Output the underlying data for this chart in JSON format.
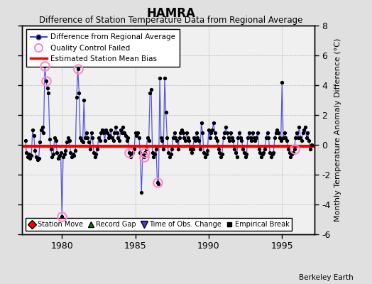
{
  "title": "HAMRA",
  "subtitle": "Difference of Station Temperature Data from Regional Average",
  "ylabel": "Monthly Temperature Anomaly Difference (°C)",
  "xlabel_ticks": [
    1980,
    1985,
    1990,
    1995
  ],
  "ylim": [
    -6,
    8
  ],
  "yticks": [
    -6,
    -4,
    -2,
    0,
    2,
    4,
    6,
    8
  ],
  "xlim": [
    1977.3,
    1997.2
  ],
  "bias_value": -0.1,
  "background_color": "#e0e0e0",
  "plot_bg_color": "#f0f0f0",
  "line_color": "#4444dd",
  "bias_color": "#ff0000",
  "marker_color": "#000000",
  "qc_color": "#ff88cc",
  "watermark": "Berkeley Earth",
  "times": [
    1977.5,
    1977.583,
    1977.667,
    1977.75,
    1977.833,
    1977.917,
    1978.0,
    1978.083,
    1978.167,
    1978.25,
    1978.333,
    1978.417,
    1978.5,
    1978.583,
    1978.667,
    1978.75,
    1978.833,
    1978.917,
    1979.0,
    1979.083,
    1979.167,
    1979.25,
    1979.333,
    1979.417,
    1979.5,
    1979.583,
    1979.667,
    1979.75,
    1979.833,
    1979.917,
    1980.0,
    1980.083,
    1980.167,
    1980.25,
    1980.333,
    1980.417,
    1980.5,
    1980.583,
    1980.667,
    1980.75,
    1980.833,
    1980.917,
    1981.0,
    1981.083,
    1981.167,
    1981.25,
    1981.333,
    1981.417,
    1981.5,
    1981.583,
    1981.667,
    1981.75,
    1981.833,
    1981.917,
    1982.0,
    1982.083,
    1982.167,
    1982.25,
    1982.333,
    1982.417,
    1982.5,
    1982.583,
    1982.667,
    1982.75,
    1982.833,
    1982.917,
    1983.0,
    1983.083,
    1983.167,
    1983.25,
    1983.333,
    1983.417,
    1983.5,
    1983.583,
    1983.667,
    1983.75,
    1983.833,
    1983.917,
    1984.0,
    1984.083,
    1984.167,
    1984.25,
    1984.333,
    1984.417,
    1984.5,
    1984.583,
    1984.667,
    1984.75,
    1984.833,
    1984.917,
    1985.0,
    1985.083,
    1985.167,
    1985.25,
    1985.333,
    1985.417,
    1985.5,
    1985.583,
    1985.667,
    1985.75,
    1985.833,
    1985.917,
    1986.0,
    1986.083,
    1986.167,
    1986.25,
    1986.333,
    1986.417,
    1986.5,
    1986.583,
    1986.667,
    1986.75,
    1986.833,
    1986.917,
    1987.0,
    1987.083,
    1987.167,
    1987.25,
    1987.333,
    1987.417,
    1987.5,
    1987.583,
    1987.667,
    1987.75,
    1987.833,
    1987.917,
    1988.0,
    1988.083,
    1988.167,
    1988.25,
    1988.333,
    1988.417,
    1988.5,
    1988.583,
    1988.667,
    1988.75,
    1988.833,
    1988.917,
    1989.0,
    1989.083,
    1989.167,
    1989.25,
    1989.333,
    1989.417,
    1989.5,
    1989.583,
    1989.667,
    1989.75,
    1989.833,
    1989.917,
    1990.0,
    1990.083,
    1990.167,
    1990.25,
    1990.333,
    1990.417,
    1990.5,
    1990.583,
    1990.667,
    1990.75,
    1990.833,
    1990.917,
    1991.0,
    1991.083,
    1991.167,
    1991.25,
    1991.333,
    1991.417,
    1991.5,
    1991.583,
    1991.667,
    1991.75,
    1991.833,
    1991.917,
    1992.0,
    1992.083,
    1992.167,
    1992.25,
    1992.333,
    1992.417,
    1992.5,
    1992.583,
    1992.667,
    1992.75,
    1992.833,
    1992.917,
    1993.0,
    1993.083,
    1993.167,
    1993.25,
    1993.333,
    1993.417,
    1993.5,
    1993.583,
    1993.667,
    1993.75,
    1993.833,
    1993.917,
    1994.0,
    1994.083,
    1994.167,
    1994.25,
    1994.333,
    1994.417,
    1994.5,
    1994.583,
    1994.667,
    1994.75,
    1994.833,
    1994.917,
    1995.0,
    1995.083,
    1995.167,
    1995.25,
    1995.333,
    1995.417,
    1995.5,
    1995.583,
    1995.667,
    1995.75,
    1995.833,
    1995.917,
    1996.0,
    1996.083,
    1996.167,
    1996.25,
    1996.333,
    1996.417,
    1996.5,
    1996.583,
    1996.667,
    1996.75,
    1996.833,
    1996.917,
    1997.0
  ],
  "vals": [
    0.3,
    -0.5,
    -0.8,
    -0.6,
    -0.9,
    -0.7,
    1.0,
    0.6,
    -0.4,
    -0.8,
    -1.0,
    -0.9,
    0.2,
    1.0,
    1.2,
    0.8,
    5.3,
    4.3,
    3.8,
    3.5,
    0.4,
    -0.3,
    -0.8,
    -0.6,
    0.5,
    0.3,
    -0.5,
    -0.9,
    -0.7,
    -0.5,
    -4.8,
    -0.8,
    -0.6,
    -0.4,
    0.2,
    0.5,
    0.3,
    -0.5,
    -0.8,
    -0.6,
    -0.7,
    -0.4,
    3.2,
    5.1,
    3.5,
    0.5,
    0.3,
    0.2,
    3.0,
    0.5,
    0.8,
    0.5,
    0.2,
    -0.3,
    0.8,
    0.5,
    -0.5,
    -0.8,
    -0.6,
    -0.3,
    0.5,
    0.3,
    0.8,
    1.0,
    0.8,
    0.3,
    1.0,
    0.8,
    0.5,
    0.6,
    1.0,
    0.5,
    0.3,
    0.8,
    1.2,
    0.8,
    0.5,
    0.3,
    1.0,
    0.8,
    1.2,
    0.8,
    0.6,
    0.3,
    0.5,
    -0.5,
    -0.8,
    -0.6,
    -0.5,
    -0.3,
    0.8,
    0.6,
    0.8,
    0.5,
    -0.5,
    -3.2,
    -0.6,
    -0.8,
    -0.5,
    -0.3,
    0.5,
    0.3,
    3.5,
    3.7,
    -0.5,
    -0.8,
    -0.6,
    -0.3,
    -2.5,
    -2.6,
    4.5,
    0.5,
    0.3,
    -0.3,
    4.5,
    2.2,
    0.5,
    -0.5,
    -0.8,
    -0.6,
    -0.3,
    0.5,
    0.8,
    0.5,
    0.3,
    -0.3,
    0.5,
    0.8,
    1.0,
    0.8,
    0.5,
    0.3,
    0.8,
    0.5,
    0.3,
    -0.3,
    -0.5,
    -0.3,
    0.5,
    0.3,
    0.8,
    0.5,
    0.3,
    -0.3,
    1.5,
    0.8,
    -0.5,
    -0.8,
    -0.6,
    -0.4,
    1.0,
    0.5,
    0.8,
    1.0,
    1.5,
    0.8,
    0.5,
    0.3,
    -0.3,
    -0.5,
    -0.8,
    -0.6,
    0.5,
    0.8,
    1.2,
    0.8,
    0.5,
    0.3,
    0.8,
    0.5,
    0.3,
    -0.3,
    -0.5,
    -0.8,
    0.5,
    0.8,
    0.5,
    0.3,
    -0.3,
    -0.5,
    -0.8,
    -0.6,
    0.5,
    0.8,
    0.5,
    0.3,
    0.8,
    0.5,
    0.3,
    0.5,
    0.8,
    -0.3,
    -0.5,
    -0.8,
    -0.6,
    -0.5,
    -0.3,
    0.5,
    0.8,
    0.5,
    -0.5,
    -0.8,
    -0.6,
    -0.5,
    0.5,
    0.8,
    1.0,
    0.8,
    0.5,
    0.3,
    4.2,
    0.5,
    0.8,
    0.5,
    0.3,
    -0.3,
    -0.5,
    -0.8,
    -0.6,
    -0.5,
    -0.3,
    0.5,
    0.8,
    0.5,
    1.2,
    0.5,
    0.3,
    0.8,
    1.0,
    1.2,
    0.5,
    0.8,
    0.3,
    -0.3,
    0.0
  ],
  "qc_indices": [
    16,
    17,
    30,
    43,
    85,
    97,
    98,
    108,
    220
  ]
}
